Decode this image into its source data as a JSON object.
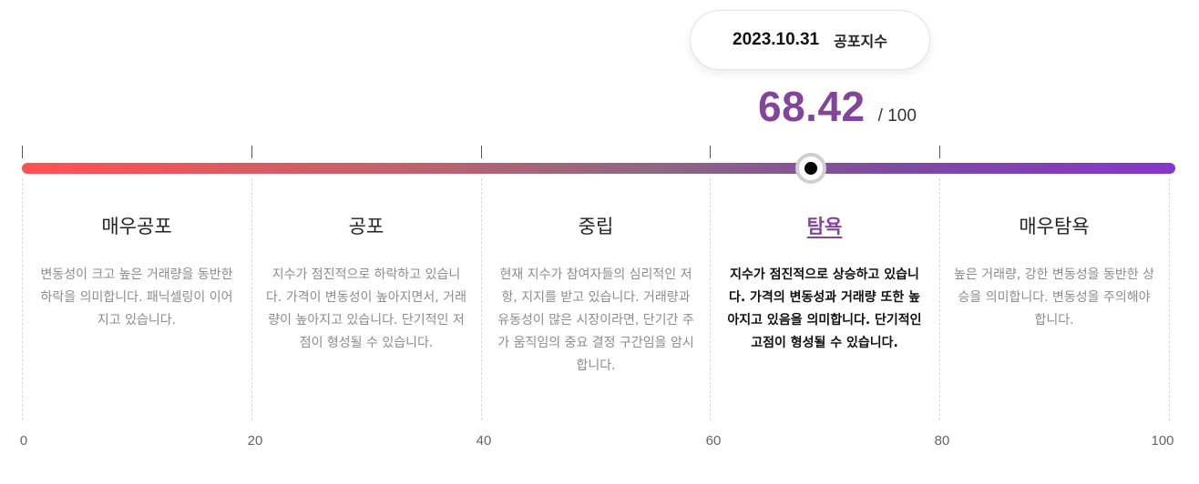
{
  "tooltip": {
    "date": "2023.10.31",
    "index_name": "공포지수"
  },
  "current": {
    "value": "68.42",
    "max_label": "/ 100",
    "numeric_value": 68.42,
    "scale_max": 100
  },
  "zones": [
    {
      "name": "매우공포",
      "desc": "변동성이 크고 높은 거래량을 동반한 하락을 의미합니다. 패닉셀링이 이어지고 있습니다.",
      "active": false
    },
    {
      "name": "공포",
      "desc": "지수가 점진적으로 하락하고 있습니다. 가격이 변동성이 높아지면서, 거래량이 높아지고 있습니다. 단기적인 저점이 형성될 수 있습니다.",
      "active": false
    },
    {
      "name": "중립",
      "desc": "현재 지수가 참여자들의 심리적인 저항, 지지를 받고 있습니다. 거래량과 유동성이 많은 시장이라면, 단기간 주가 움직임의 중요 결정 구간임을 암시합니다.",
      "active": false
    },
    {
      "name": "탐욕",
      "desc": "지수가 점진적으로 상승하고 있습니다. 가격의 변동성과 거래량 또한 높아지고 있음을 의미합니다. 단기적인 고점이 형성될 수 있습니다.",
      "active": true
    },
    {
      "name": "매우탐욕",
      "desc": "높은 거래량, 강한 변동성을 동반한 상승을 의미합니다. 변동성을 주의해야 합니다.",
      "active": false
    }
  ],
  "axis": [
    "0",
    "20",
    "40",
    "60",
    "80",
    "100"
  ],
  "colors": {
    "accent": "#82459a",
    "gradient_start": "#fd5252",
    "gradient_end": "#8635cc"
  }
}
